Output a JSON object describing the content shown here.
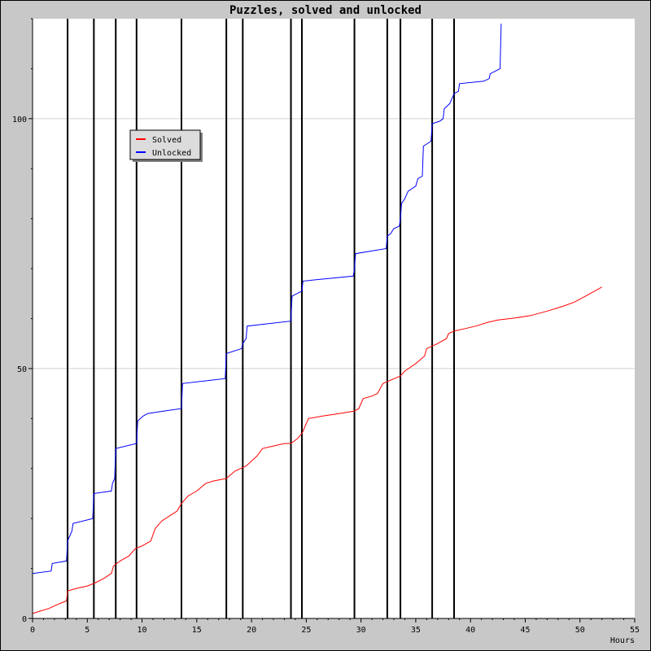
{
  "chart_data": {
    "type": "line",
    "title": "Puzzles, solved and unlocked",
    "xlabel": "Hours",
    "ylabel": "",
    "xlim": [
      0,
      55
    ],
    "ylim": [
      0,
      120
    ],
    "x_ticks": [
      0,
      5,
      10,
      15,
      20,
      25,
      30,
      35,
      40,
      45,
      50,
      55
    ],
    "y_ticks": [
      0,
      50,
      100
    ],
    "grid": true,
    "legend_position": "upper-left",
    "event_lines_x": [
      3.2,
      5.6,
      7.6,
      9.5,
      13.6,
      17.7,
      19.2,
      23.6,
      24.6,
      29.4,
      32.4,
      33.6,
      36.5,
      38.5
    ],
    "colors": {
      "background": "#c8c8c8",
      "plot": "#ffffff",
      "grid": "#d0d0d0",
      "event_line": "#000000"
    },
    "series": [
      {
        "name": "Solved",
        "color": "#ff0000",
        "points": [
          [
            0,
            1
          ],
          [
            1.5,
            2
          ],
          [
            2.5,
            3
          ],
          [
            3.1,
            3.5
          ],
          [
            3.2,
            5.5
          ],
          [
            4.0,
            6
          ],
          [
            5.0,
            6.5
          ],
          [
            5.6,
            7
          ],
          [
            6.5,
            8
          ],
          [
            7.2,
            9
          ],
          [
            7.4,
            10.5
          ],
          [
            8.0,
            11.5
          ],
          [
            8.8,
            12.5
          ],
          [
            9.4,
            14
          ],
          [
            10.0,
            14.5
          ],
          [
            10.8,
            15.5
          ],
          [
            11.2,
            18
          ],
          [
            11.8,
            19.5
          ],
          [
            12.5,
            20.5
          ],
          [
            13.2,
            21.5
          ],
          [
            13.6,
            23
          ],
          [
            14.2,
            24.5
          ],
          [
            15.0,
            25.5
          ],
          [
            15.8,
            27
          ],
          [
            16.5,
            27.5
          ],
          [
            17.7,
            28
          ],
          [
            18.5,
            29.5
          ],
          [
            19.5,
            30.5
          ],
          [
            20.5,
            32.5
          ],
          [
            21.0,
            34
          ],
          [
            22.0,
            34.5
          ],
          [
            23.0,
            35
          ],
          [
            23.6,
            35
          ],
          [
            24.2,
            36
          ],
          [
            24.6,
            37
          ],
          [
            25.2,
            40
          ],
          [
            26.5,
            40.5
          ],
          [
            28.0,
            41
          ],
          [
            29.4,
            41.5
          ],
          [
            29.8,
            42
          ],
          [
            30.2,
            44
          ],
          [
            31.0,
            44.5
          ],
          [
            31.5,
            45
          ],
          [
            32.0,
            47
          ],
          [
            32.5,
            47.5
          ],
          [
            33.6,
            48.5
          ],
          [
            34.0,
            49.5
          ],
          [
            35.0,
            51
          ],
          [
            35.8,
            52.5
          ],
          [
            36.0,
            54
          ],
          [
            36.5,
            54.5
          ],
          [
            37.0,
            55
          ],
          [
            37.8,
            56
          ],
          [
            38.0,
            57
          ],
          [
            38.5,
            57.5
          ],
          [
            39.5,
            58
          ],
          [
            40.5,
            58.5
          ],
          [
            41.5,
            59.2
          ],
          [
            42.5,
            59.7
          ],
          [
            44.0,
            60.1
          ],
          [
            45.5,
            60.6
          ],
          [
            47.0,
            61.5
          ],
          [
            48.5,
            62.5
          ],
          [
            49.5,
            63.3
          ],
          [
            50.5,
            64.5
          ],
          [
            52.0,
            66.3
          ]
        ]
      },
      {
        "name": "Unlocked",
        "color": "#0000ff",
        "points": [
          [
            0,
            9
          ],
          [
            1.7,
            9.5
          ],
          [
            1.8,
            11
          ],
          [
            3.1,
            11.5
          ],
          [
            3.2,
            15.5
          ],
          [
            3.6,
            17.5
          ],
          [
            3.7,
            19
          ],
          [
            5.5,
            20
          ],
          [
            5.6,
            25
          ],
          [
            7.2,
            25.5
          ],
          [
            7.3,
            27
          ],
          [
            7.5,
            28
          ],
          [
            7.6,
            34
          ],
          [
            9.5,
            35
          ],
          [
            9.6,
            39.5
          ],
          [
            10.1,
            40.5
          ],
          [
            10.5,
            41
          ],
          [
            12.0,
            41.5
          ],
          [
            13.6,
            42
          ],
          [
            13.7,
            47
          ],
          [
            17.6,
            48
          ],
          [
            17.7,
            53
          ],
          [
            19.1,
            54
          ],
          [
            19.2,
            55
          ],
          [
            19.5,
            56
          ],
          [
            19.6,
            58.5
          ],
          [
            23.6,
            59.5
          ],
          [
            23.7,
            64.5
          ],
          [
            24.6,
            65.5
          ],
          [
            24.7,
            67.5
          ],
          [
            29.3,
            68.5
          ],
          [
            29.4,
            70
          ],
          [
            29.5,
            73
          ],
          [
            32.3,
            74
          ],
          [
            32.4,
            76.5
          ],
          [
            32.7,
            77
          ],
          [
            33.0,
            78
          ],
          [
            33.5,
            78.5
          ],
          [
            33.6,
            80
          ],
          [
            33.7,
            83
          ],
          [
            34.0,
            84
          ],
          [
            34.3,
            85.5
          ],
          [
            35.0,
            86.5
          ],
          [
            35.2,
            88
          ],
          [
            35.6,
            88.5
          ],
          [
            35.7,
            94.5
          ],
          [
            36.4,
            95.5
          ],
          [
            36.5,
            99
          ],
          [
            37.2,
            99.5
          ],
          [
            37.5,
            100
          ],
          [
            37.6,
            102
          ],
          [
            38.1,
            103
          ],
          [
            38.5,
            105
          ],
          [
            38.9,
            105.5
          ],
          [
            39.0,
            107
          ],
          [
            41.2,
            107.5
          ],
          [
            41.7,
            108
          ],
          [
            41.8,
            109
          ],
          [
            42.7,
            110
          ],
          [
            42.8,
            119
          ]
        ]
      }
    ]
  }
}
